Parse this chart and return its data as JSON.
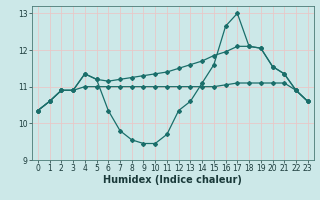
{
  "title": "",
  "xlabel": "Humidex (Indice chaleur)",
  "ylabel": "",
  "xlim": [
    -0.5,
    23.5
  ],
  "ylim": [
    9,
    13.2
  ],
  "yticks": [
    9,
    10,
    11,
    12,
    13
  ],
  "xticks": [
    0,
    1,
    2,
    3,
    4,
    5,
    6,
    7,
    8,
    9,
    10,
    11,
    12,
    13,
    14,
    15,
    16,
    17,
    18,
    19,
    20,
    21,
    22,
    23
  ],
  "background_color": "#cce8e8",
  "grid_color": "#e8c8c8",
  "line_color": "#1a6e6a",
  "curves": [
    [
      10.35,
      10.6,
      10.9,
      10.9,
      11.35,
      11.2,
      10.35,
      9.8,
      9.55,
      9.45,
      9.45,
      9.7,
      10.35,
      10.6,
      11.1,
      11.6,
      12.65,
      13.0,
      12.1,
      12.05,
      11.55,
      11.35,
      10.9,
      10.6
    ],
    [
      10.35,
      10.6,
      10.9,
      10.9,
      11.35,
      11.2,
      11.15,
      11.2,
      11.25,
      11.3,
      11.35,
      11.4,
      11.5,
      11.6,
      11.7,
      11.85,
      11.95,
      12.1,
      12.1,
      12.05,
      11.55,
      11.35,
      10.9,
      10.6
    ],
    [
      10.35,
      10.6,
      10.9,
      10.9,
      11.0,
      11.0,
      11.0,
      11.0,
      11.0,
      11.0,
      11.0,
      11.0,
      11.0,
      11.0,
      11.0,
      11.0,
      11.05,
      11.1,
      11.1,
      11.1,
      11.1,
      11.1,
      10.9,
      10.6
    ]
  ],
  "tick_fontsize": 5.5,
  "xlabel_fontsize": 7,
  "marker_size": 2.0
}
